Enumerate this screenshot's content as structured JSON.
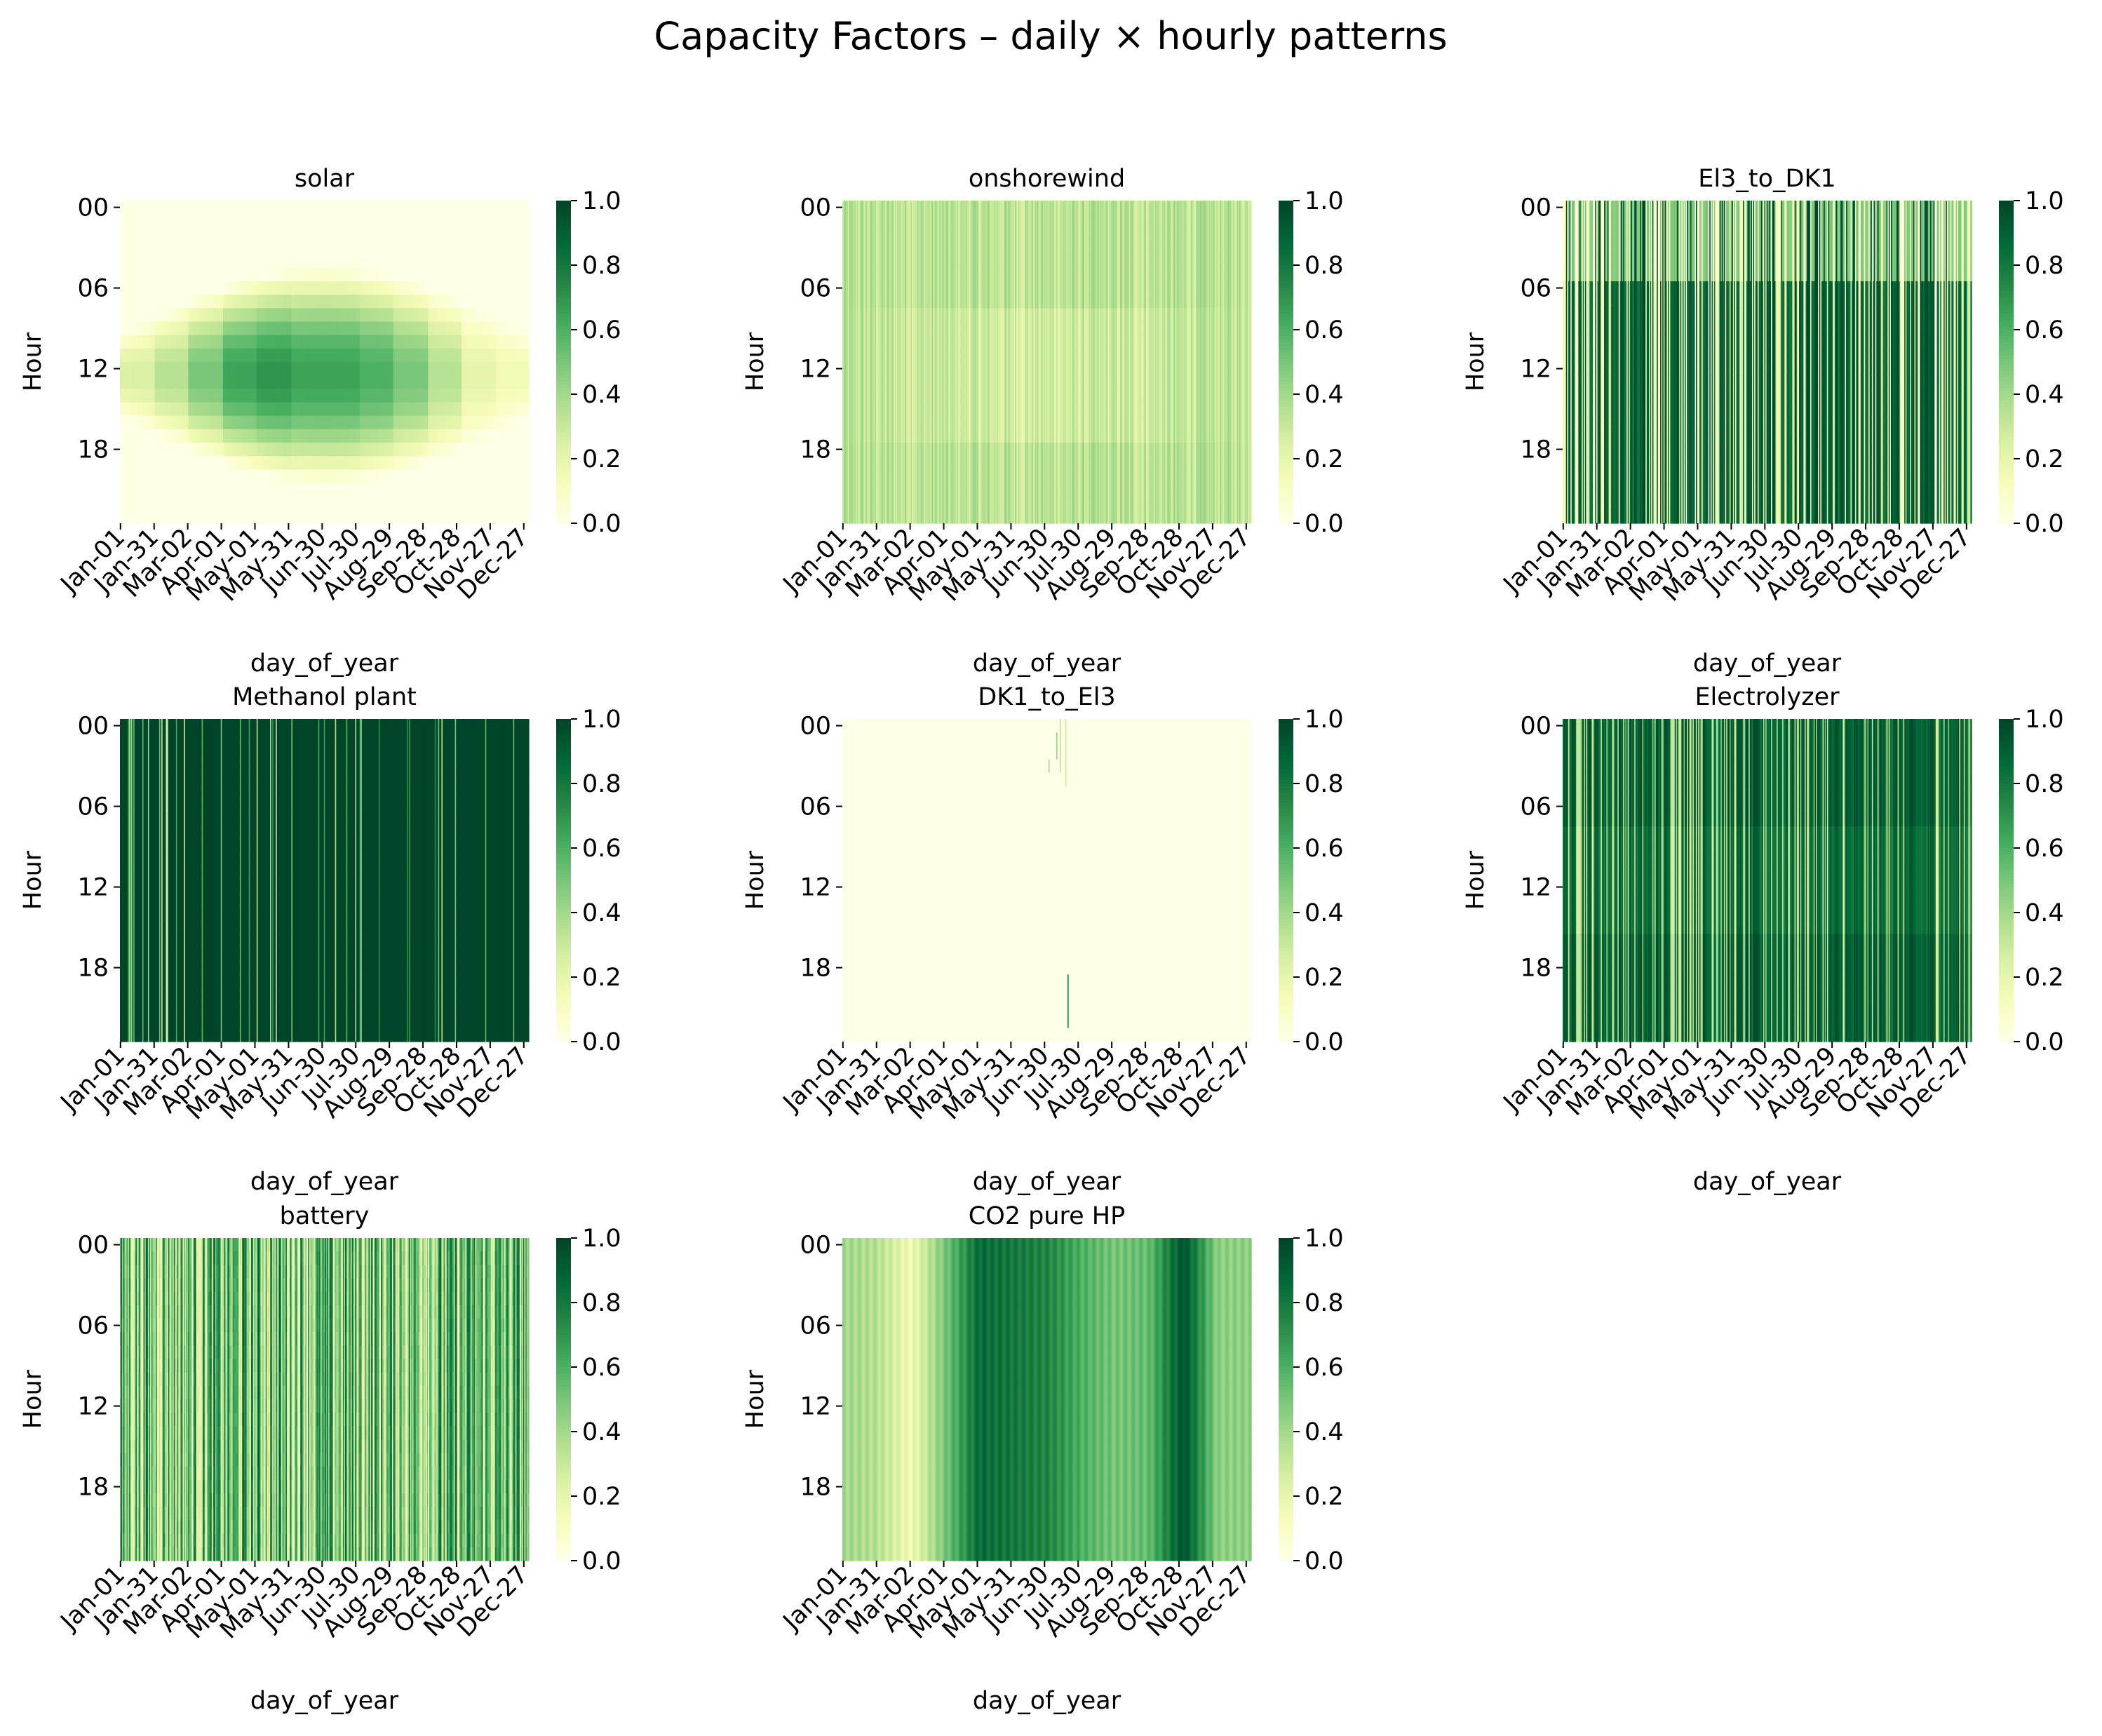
{
  "figure": {
    "title": "Capacity Factors – daily × hourly patterns"
  },
  "common": {
    "xlabel": "day_of_year",
    "ylabel": "Hour",
    "y_tick_labels": [
      "00",
      "06",
      "12",
      "18"
    ],
    "y_tick_hours": [
      0,
      6,
      12,
      18
    ],
    "x_tick_labels": [
      "Jan-01",
      "Jan-31",
      "Mar-02",
      "Apr-01",
      "May-01",
      "May-31",
      "Jun-30",
      "Jul-30",
      "Aug-29",
      "Sep-28",
      "Oct-28",
      "Nov-27",
      "Dec-27"
    ],
    "x_tick_days": [
      1,
      31,
      61,
      91,
      121,
      151,
      181,
      211,
      241,
      271,
      301,
      331,
      361
    ],
    "colorbar_ticks": [
      "0.0",
      "0.2",
      "0.4",
      "0.6",
      "0.8",
      "1.0"
    ],
    "colormap": "YlGn",
    "colormap_stops": [
      "#ffffe5",
      "#f7fcb9",
      "#d9f0a3",
      "#addd8e",
      "#78c679",
      "#41ab5d",
      "#238443",
      "#006837",
      "#004529"
    ]
  },
  "chart_data": [
    {
      "type": "heatmap",
      "title": "solar",
      "xlabel": "day_of_year",
      "ylabel": "Hour",
      "x": "days 1–365",
      "y": "hours 0–23",
      "value_range": [
        0,
        1
      ],
      "pattern": "zero at night; daytime peak up to ~0.7 around noon in April–August, lower in winter months",
      "approx_peak_by_month": [
        0.25,
        0.35,
        0.5,
        0.65,
        0.7,
        0.65,
        0.65,
        0.6,
        0.5,
        0.35,
        0.2,
        0.15
      ]
    },
    {
      "type": "heatmap",
      "title": "onshorewind",
      "xlabel": "day_of_year",
      "ylabel": "Hour",
      "value_range": [
        0,
        1
      ],
      "pattern": "fairly uniform light values, mostly 0.25–0.45, varying by day, slightly lower midday in summer",
      "approx_mean": 0.33
    },
    {
      "type": "heatmap",
      "title": "El3_to_DK1",
      "xlabel": "day_of_year",
      "ylabel": "Hour",
      "value_range": [
        0,
        1
      ],
      "pattern": "highly variable daily stripes; many days near 1.0, especially daytime hours 06–24; some days near 0",
      "approx_mean": 0.6
    },
    {
      "type": "heatmap",
      "title": "Methanol plant",
      "xlabel": "day_of_year",
      "ylabel": "Hour",
      "value_range": [
        0,
        1
      ],
      "pattern": "almost entirely at 1.0 with sparse lighter day stripes",
      "approx_mean": 0.95
    },
    {
      "type": "heatmap",
      "title": "DK1_to_El3",
      "xlabel": "day_of_year",
      "ylabel": "Hour",
      "value_range": [
        0,
        1
      ],
      "pattern": "almost all 0; a few brief nonzero spikes in late June–July at early morning hours and one near hour 20",
      "approx_mean": 0.005
    },
    {
      "type": "heatmap",
      "title": "Electrolyzer",
      "xlabel": "day_of_year",
      "ylabel": "Hour",
      "value_range": [
        0,
        1
      ],
      "pattern": "mostly high (0.7–1.0) with variable lighter daily stripes",
      "approx_mean": 0.75
    },
    {
      "type": "heatmap",
      "title": "battery",
      "xlabel": "day_of_year",
      "ylabel": "Hour",
      "value_range": [
        0,
        1
      ],
      "pattern": "highly variable stripes between ~0.1 and ~0.9",
      "approx_mean": 0.5
    },
    {
      "type": "heatmap",
      "title": "CO2 pure HP",
      "xlabel": "day_of_year",
      "ylabel": "Hour",
      "value_range": [
        0,
        1
      ],
      "pattern": "constant within each day, smooth seasonal bands; low (~0.1–0.3) in late Feb–Mar, high (~0.8–1.0) in May–Jul and late Oct–Nov",
      "approx_daily_value_by_month": [
        0.4,
        0.35,
        0.15,
        0.5,
        0.85,
        0.8,
        0.75,
        0.6,
        0.5,
        0.55,
        0.95,
        0.45
      ]
    }
  ]
}
